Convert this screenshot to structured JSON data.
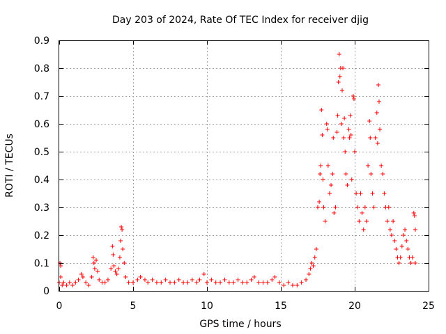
{
  "chart_data": {
    "type": "scatter",
    "title": "Day 203 of 2024, Rate Of TEC Index for receiver djig",
    "xlabel": "GPS time / hours",
    "ylabel": "ROTI / TECUs",
    "xlim": [
      0,
      25
    ],
    "ylim": [
      0,
      0.9
    ],
    "x_ticks": [
      0,
      5,
      10,
      15,
      20,
      25
    ],
    "y_ticks": [
      0,
      0.1,
      0.2,
      0.3,
      0.4,
      0.5,
      0.6,
      0.7,
      0.8,
      0.9
    ],
    "x_tick_labels": [
      "0",
      "5",
      "10",
      "15",
      "20",
      "25"
    ],
    "y_tick_labels": [
      "0",
      "0.1",
      "0.2",
      "0.3",
      "0.4",
      "0.5",
      "0.6",
      "0.7",
      "0.8",
      "0.9"
    ],
    "grid": true,
    "marker": "plus",
    "marker_color": "#ff0000",
    "series": [
      {
        "points": [
          [
            0.0,
            0.03
          ],
          [
            0.05,
            0.1
          ],
          [
            0.1,
            0.09
          ],
          [
            0.1,
            0.05
          ],
          [
            0.2,
            0.02
          ],
          [
            0.3,
            0.03
          ],
          [
            0.5,
            0.02
          ],
          [
            0.7,
            0.03
          ],
          [
            0.9,
            0.02
          ],
          [
            1.1,
            0.03
          ],
          [
            1.3,
            0.04
          ],
          [
            1.5,
            0.06
          ],
          [
            1.6,
            0.05
          ],
          [
            1.8,
            0.03
          ],
          [
            2.0,
            0.02
          ],
          [
            2.2,
            0.05
          ],
          [
            2.3,
            0.12
          ],
          [
            2.35,
            0.1
          ],
          [
            2.4,
            0.08
          ],
          [
            2.5,
            0.11
          ],
          [
            2.6,
            0.07
          ],
          [
            2.7,
            0.04
          ],
          [
            2.9,
            0.03
          ],
          [
            3.1,
            0.03
          ],
          [
            3.3,
            0.04
          ],
          [
            3.5,
            0.08
          ],
          [
            3.6,
            0.16
          ],
          [
            3.65,
            0.13
          ],
          [
            3.7,
            0.09
          ],
          [
            3.8,
            0.07
          ],
          [
            3.9,
            0.06
          ],
          [
            4.0,
            0.08
          ],
          [
            4.1,
            0.12
          ],
          [
            4.15,
            0.18
          ],
          [
            4.2,
            0.23
          ],
          [
            4.25,
            0.22
          ],
          [
            4.3,
            0.15
          ],
          [
            4.4,
            0.1
          ],
          [
            4.5,
            0.05
          ],
          [
            4.7,
            0.03
          ],
          [
            5.0,
            0.03
          ],
          [
            5.3,
            0.04
          ],
          [
            5.5,
            0.05
          ],
          [
            5.8,
            0.04
          ],
          [
            6.0,
            0.03
          ],
          [
            6.3,
            0.04
          ],
          [
            6.6,
            0.03
          ],
          [
            6.9,
            0.03
          ],
          [
            7.2,
            0.04
          ],
          [
            7.5,
            0.03
          ],
          [
            7.8,
            0.03
          ],
          [
            8.1,
            0.04
          ],
          [
            8.4,
            0.03
          ],
          [
            8.7,
            0.03
          ],
          [
            9.0,
            0.04
          ],
          [
            9.3,
            0.03
          ],
          [
            9.5,
            0.04
          ],
          [
            9.8,
            0.06
          ],
          [
            10.0,
            0.03
          ],
          [
            10.3,
            0.04
          ],
          [
            10.6,
            0.03
          ],
          [
            10.9,
            0.03
          ],
          [
            11.2,
            0.04
          ],
          [
            11.5,
            0.03
          ],
          [
            11.8,
            0.03
          ],
          [
            12.1,
            0.04
          ],
          [
            12.4,
            0.03
          ],
          [
            12.7,
            0.03
          ],
          [
            13.0,
            0.04
          ],
          [
            13.2,
            0.05
          ],
          [
            13.5,
            0.03
          ],
          [
            13.8,
            0.03
          ],
          [
            14.1,
            0.03
          ],
          [
            14.4,
            0.04
          ],
          [
            14.6,
            0.05
          ],
          [
            14.9,
            0.03
          ],
          [
            15.2,
            0.02
          ],
          [
            15.5,
            0.03
          ],
          [
            15.8,
            0.02
          ],
          [
            16.1,
            0.02
          ],
          [
            16.4,
            0.03
          ],
          [
            16.7,
            0.04
          ],
          [
            16.9,
            0.06
          ],
          [
            17.0,
            0.08
          ],
          [
            17.1,
            0.1
          ],
          [
            17.2,
            0.09
          ],
          [
            17.3,
            0.12
          ],
          [
            17.4,
            0.15
          ],
          [
            17.5,
            0.3
          ],
          [
            17.6,
            0.32
          ],
          [
            17.65,
            0.42
          ],
          [
            17.7,
            0.45
          ],
          [
            17.75,
            0.65
          ],
          [
            17.8,
            0.56
          ],
          [
            17.85,
            0.4
          ],
          [
            17.9,
            0.3
          ],
          [
            18.0,
            0.25
          ],
          [
            18.1,
            0.6
          ],
          [
            18.15,
            0.58
          ],
          [
            18.2,
            0.45
          ],
          [
            18.3,
            0.35
          ],
          [
            18.4,
            0.38
          ],
          [
            18.5,
            0.42
          ],
          [
            18.55,
            0.55
          ],
          [
            18.6,
            0.28
          ],
          [
            18.7,
            0.3
          ],
          [
            18.8,
            0.57
          ],
          [
            18.85,
            0.63
          ],
          [
            18.9,
            0.75
          ],
          [
            18.95,
            0.85
          ],
          [
            19.0,
            0.77
          ],
          [
            19.05,
            0.8
          ],
          [
            19.1,
            0.6
          ],
          [
            19.15,
            0.72
          ],
          [
            19.2,
            0.8
          ],
          [
            19.25,
            0.55
          ],
          [
            19.3,
            0.62
          ],
          [
            19.35,
            0.5
          ],
          [
            19.4,
            0.42
          ],
          [
            19.5,
            0.38
          ],
          [
            19.6,
            0.58
          ],
          [
            19.65,
            0.55
          ],
          [
            19.7,
            0.63
          ],
          [
            19.75,
            0.56
          ],
          [
            19.8,
            0.4
          ],
          [
            19.9,
            0.7
          ],
          [
            19.95,
            0.69
          ],
          [
            20.0,
            0.5
          ],
          [
            20.1,
            0.35
          ],
          [
            20.2,
            0.3
          ],
          [
            20.3,
            0.25
          ],
          [
            20.4,
            0.35
          ],
          [
            20.5,
            0.28
          ],
          [
            20.6,
            0.22
          ],
          [
            20.7,
            0.3
          ],
          [
            20.8,
            0.25
          ],
          [
            20.9,
            0.45
          ],
          [
            21.0,
            0.61
          ],
          [
            21.05,
            0.55
          ],
          [
            21.1,
            0.42
          ],
          [
            21.2,
            0.35
          ],
          [
            21.3,
            0.3
          ],
          [
            21.4,
            0.55
          ],
          [
            21.5,
            0.64
          ],
          [
            21.55,
            0.53
          ],
          [
            21.6,
            0.74
          ],
          [
            21.65,
            0.68
          ],
          [
            21.7,
            0.58
          ],
          [
            21.8,
            0.45
          ],
          [
            21.9,
            0.42
          ],
          [
            22.0,
            0.35
          ],
          [
            22.1,
            0.3
          ],
          [
            22.2,
            0.25
          ],
          [
            22.3,
            0.3
          ],
          [
            22.4,
            0.22
          ],
          [
            22.5,
            0.2
          ],
          [
            22.6,
            0.25
          ],
          [
            22.7,
            0.18
          ],
          [
            22.8,
            0.15
          ],
          [
            22.9,
            0.12
          ],
          [
            23.0,
            0.1
          ],
          [
            23.1,
            0.12
          ],
          [
            23.2,
            0.16
          ],
          [
            23.3,
            0.2
          ],
          [
            23.4,
            0.22
          ],
          [
            23.5,
            0.18
          ],
          [
            23.6,
            0.15
          ],
          [
            23.7,
            0.12
          ],
          [
            23.8,
            0.1
          ],
          [
            23.9,
            0.12
          ],
          [
            24.0,
            0.28
          ],
          [
            24.05,
            0.27
          ],
          [
            24.1,
            0.22
          ],
          [
            24.1,
            0.1
          ]
        ]
      }
    ]
  }
}
